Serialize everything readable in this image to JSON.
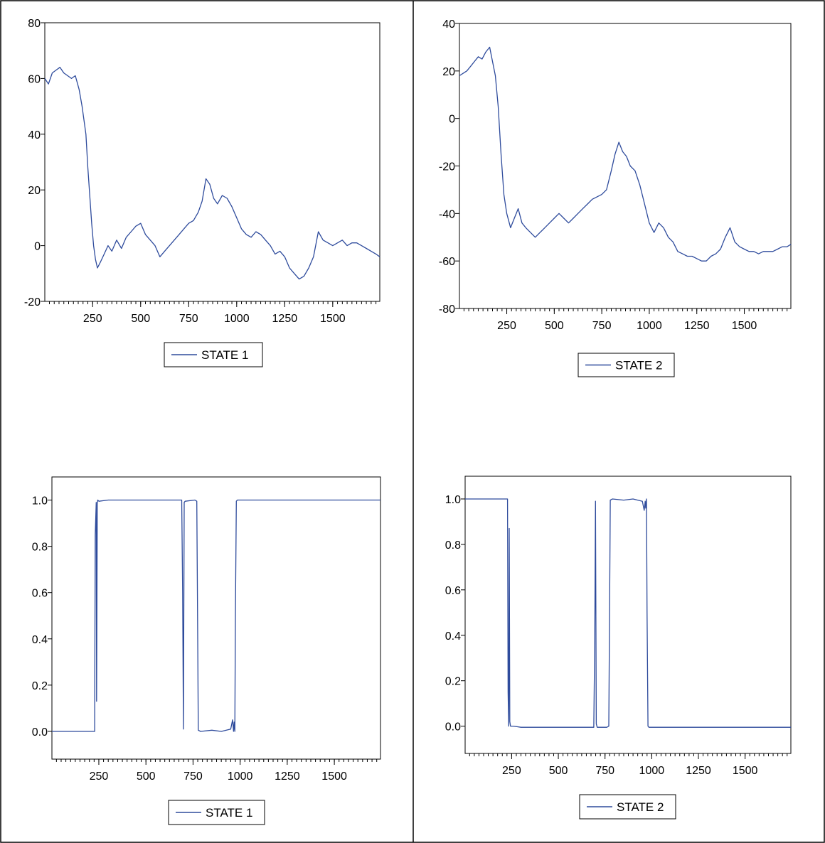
{
  "colors": {
    "line": "#2e4b9c",
    "axis": "#000000",
    "border": "#000000"
  },
  "chart_data": [
    {
      "type": "line",
      "panel": "top-left",
      "series": [
        {
          "name": "STATE 1",
          "x": [
            1,
            20,
            40,
            60,
            80,
            100,
            120,
            140,
            160,
            180,
            195,
            205,
            215,
            225,
            235,
            245,
            255,
            265,
            275,
            290,
            310,
            330,
            350,
            375,
            400,
            425,
            450,
            475,
            500,
            525,
            550,
            575,
            600,
            625,
            650,
            675,
            700,
            725,
            750,
            775,
            800,
            820,
            840,
            860,
            880,
            900,
            925,
            950,
            975,
            1000,
            1025,
            1050,
            1075,
            1100,
            1125,
            1150,
            1175,
            1200,
            1225,
            1250,
            1275,
            1300,
            1325,
            1350,
            1375,
            1400,
            1425,
            1450,
            1475,
            1500,
            1525,
            1550,
            1575,
            1600,
            1625,
            1650,
            1675,
            1700,
            1725,
            1745
          ],
          "values": [
            60,
            58,
            62,
            63,
            64,
            62,
            61,
            60,
            61,
            56,
            50,
            45,
            40,
            28,
            18,
            8,
            0,
            -5,
            -8,
            -6,
            -3,
            0,
            -2,
            2,
            -1,
            3,
            5,
            7,
            8,
            4,
            2,
            0,
            -4,
            -2,
            0,
            2,
            4,
            6,
            8,
            9,
            12,
            16,
            24,
            22,
            17,
            15,
            18,
            17,
            14,
            10,
            6,
            4,
            3,
            5,
            4,
            2,
            0,
            -3,
            -2,
            -4,
            -8,
            -10,
            -12,
            -11,
            -8,
            -4,
            5,
            2,
            1,
            0,
            1,
            2,
            0,
            1,
            1,
            0,
            -1,
            -2,
            -3,
            -4
          ]
        }
      ],
      "xticks": [
        250,
        500,
        750,
        1000,
        1250,
        1500
      ],
      "yticks": [
        -20,
        0,
        20,
        40,
        60,
        80
      ],
      "xlim": [
        1,
        1745
      ],
      "ylim": [
        -20,
        80
      ],
      "legend": "below",
      "grid": false
    },
    {
      "type": "line",
      "panel": "top-right",
      "series": [
        {
          "name": "STATE 2",
          "x": [
            1,
            20,
            40,
            60,
            80,
            100,
            120,
            140,
            160,
            175,
            190,
            205,
            220,
            235,
            250,
            270,
            290,
            310,
            330,
            350,
            375,
            400,
            425,
            450,
            475,
            500,
            525,
            550,
            575,
            600,
            625,
            650,
            675,
            700,
            725,
            750,
            775,
            800,
            820,
            840,
            860,
            880,
            900,
            925,
            950,
            975,
            1000,
            1025,
            1050,
            1075,
            1100,
            1125,
            1150,
            1175,
            1200,
            1225,
            1250,
            1275,
            1300,
            1325,
            1350,
            1375,
            1400,
            1425,
            1450,
            1475,
            1500,
            1525,
            1550,
            1575,
            1600,
            1625,
            1650,
            1675,
            1700,
            1725,
            1745
          ],
          "values": [
            18,
            19,
            20,
            22,
            24,
            26,
            25,
            28,
            30,
            24,
            18,
            5,
            -15,
            -32,
            -40,
            -46,
            -42,
            -38,
            -44,
            -46,
            -48,
            -50,
            -48,
            -46,
            -44,
            -42,
            -40,
            -42,
            -44,
            -42,
            -40,
            -38,
            -36,
            -34,
            -33,
            -32,
            -30,
            -22,
            -15,
            -10,
            -14,
            -16,
            -20,
            -22,
            -28,
            -36,
            -44,
            -48,
            -44,
            -46,
            -50,
            -52,
            -56,
            -57,
            -58,
            -58,
            -59,
            -60,
            -60,
            -58,
            -57,
            -55,
            -50,
            -46,
            -52,
            -54,
            -55,
            -56,
            -56,
            -57,
            -56,
            -56,
            -56,
            -55,
            -54,
            -54,
            -53
          ]
        }
      ],
      "xticks": [
        250,
        500,
        750,
        1000,
        1250,
        1500
      ],
      "yticks": [
        -80,
        -60,
        -40,
        -20,
        0,
        20,
        40
      ],
      "xlim": [
        1,
        1745
      ],
      "ylim": [
        -80,
        40
      ],
      "legend": "below",
      "grid": false
    },
    {
      "type": "line",
      "panel": "bottom-left",
      "series": [
        {
          "name": "STATE 1",
          "x": [
            1,
            228,
            231,
            236,
            238,
            242,
            244,
            250,
            300,
            400,
            500,
            600,
            690,
            695,
            699,
            703,
            708,
            760,
            770,
            775,
            778,
            790,
            850,
            900,
            950,
            960,
            965,
            968,
            972,
            975,
            980,
            985,
            1000,
            1250,
            1500,
            1745
          ],
          "values": [
            0.0,
            0.0,
            0.85,
            0.99,
            0.13,
            0.98,
            1.0,
            0.995,
            1.0,
            1.0,
            1.0,
            1.0,
            1.0,
            0.6,
            0.01,
            0.99,
            0.995,
            1.0,
            0.995,
            0.4,
            0.005,
            0.0,
            0.005,
            0.0,
            0.01,
            0.05,
            0.0,
            0.04,
            0.0,
            0.5,
            0.995,
            1.0,
            1.0,
            1.0,
            1.0,
            1.0
          ]
        }
      ],
      "xticks": [
        250,
        500,
        750,
        1000,
        1250,
        1500
      ],
      "yticks": [
        0.0,
        0.2,
        0.4,
        0.6,
        0.8,
        1.0
      ],
      "xlim": [
        1,
        1745
      ],
      "ylim": [
        -0.12,
        1.1
      ],
      "legend": "below",
      "grid": false
    },
    {
      "type": "line",
      "panel": "bottom-right",
      "series": [
        {
          "name": "STATE 2",
          "x": [
            1,
            228,
            231,
            234,
            237,
            240,
            244,
            260,
            300,
            500,
            690,
            695,
            699,
            703,
            708,
            760,
            770,
            775,
            778,
            790,
            850,
            900,
            950,
            960,
            965,
            968,
            972,
            975,
            980,
            985,
            1000,
            1250,
            1500,
            1745
          ],
          "values": [
            1.0,
            1.0,
            0.15,
            0.0,
            0.87,
            0.02,
            0.0,
            0.0,
            -0.005,
            -0.005,
            -0.005,
            0.4,
            0.99,
            0.01,
            -0.005,
            -0.005,
            0.0,
            0.6,
            0.995,
            1.0,
            0.995,
            1.0,
            0.99,
            0.95,
            0.99,
            0.96,
            1.0,
            0.5,
            0.0,
            -0.005,
            -0.005,
            -0.005,
            -0.005,
            -0.005
          ]
        }
      ],
      "xticks": [
        250,
        500,
        750,
        1000,
        1250,
        1500
      ],
      "yticks": [
        0.0,
        0.2,
        0.4,
        0.6,
        0.8,
        1.0
      ],
      "xlim": [
        1,
        1745
      ],
      "ylim": [
        -0.12,
        1.1
      ],
      "legend": "below",
      "grid": false
    }
  ]
}
